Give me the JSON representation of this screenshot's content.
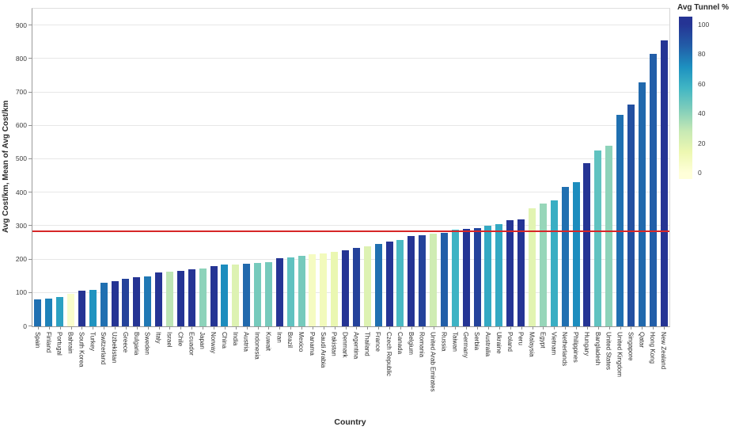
{
  "chart_data": {
    "type": "bar",
    "title": "",
    "xlabel": "Country",
    "ylabel": "Avg Cost/km, Mean of Avg Cost/km",
    "ylim": [
      0,
      950
    ],
    "yticks": [
      0,
      100,
      200,
      300,
      400,
      500,
      600,
      700,
      800,
      900
    ],
    "grid": true,
    "mean_line": {
      "value": 281,
      "color": "#d62728"
    },
    "colorbar": {
      "title": "Avg Tunnel %",
      "min": 0,
      "max": 100,
      "ticks": [
        100,
        80,
        60,
        40,
        20,
        0
      ],
      "colormap": [
        {
          "value": 0,
          "color": "#ffffd9"
        },
        {
          "value": 14,
          "color": "#edf8b1"
        },
        {
          "value": 28,
          "color": "#c7e9b4"
        },
        {
          "value": 43,
          "color": "#7fcdbb"
        },
        {
          "value": 57,
          "color": "#41b6c4"
        },
        {
          "value": 71,
          "color": "#1d91c0"
        },
        {
          "value": 85,
          "color": "#225ea8"
        },
        {
          "value": 100,
          "color": "#253494"
        }
      ]
    },
    "countries": [
      "Spain",
      "Finland",
      "Portugal",
      "Bahrain",
      "South Korea",
      "Turkey",
      "Switzerland",
      "Uzbekistan",
      "Greece",
      "Bulgaria",
      "Sweden",
      "Italy",
      "Israel",
      "Chile",
      "Ecuador",
      "Japan",
      "Norway",
      "China",
      "India",
      "Austria",
      "Indonesia",
      "Kuwait",
      "Iran",
      "Brazil",
      "Mexico",
      "Panama",
      "Saudi Arabia",
      "Pakistan",
      "Denmark",
      "Argentina",
      "Thailand",
      "France",
      "Czech Republic",
      "Canada",
      "Belgium",
      "Romania",
      "United Arab Emirates",
      "Russia",
      "Taiwan",
      "Germany",
      "Serbia",
      "Australia",
      "Ukraine",
      "Poland",
      "Peru",
      "Malaysia",
      "Egypt",
      "Vietnam",
      "Netherlands",
      "Philippines",
      "Hungary",
      "Bangladesh",
      "United States",
      "United Kingdom",
      "Singapore",
      "Qatar",
      "Hong Kong",
      "New Zealand"
    ],
    "values": [
      81,
      83,
      88,
      98,
      107,
      110,
      131,
      135,
      143,
      147,
      150,
      161,
      164,
      167,
      170,
      174,
      181,
      184,
      186,
      188,
      190,
      193,
      203,
      205,
      211,
      215,
      217,
      223,
      227,
      235,
      239,
      247,
      253,
      258,
      269,
      273,
      277,
      280,
      289,
      291,
      294,
      302,
      305,
      318,
      320,
      352,
      368,
      376,
      418,
      432,
      487,
      526,
      541,
      632,
      663,
      730,
      815,
      855
    ],
    "tunnel_pct": [
      80,
      75,
      65,
      5,
      100,
      70,
      80,
      100,
      95,
      100,
      78,
      100,
      30,
      100,
      100,
      40,
      100,
      72,
      20,
      82,
      45,
      45,
      100,
      50,
      45,
      8,
      10,
      15,
      100,
      95,
      20,
      80,
      100,
      55,
      100,
      95,
      25,
      85,
      58,
      100,
      95,
      62,
      62,
      100,
      100,
      18,
      38,
      60,
      80,
      72,
      100,
      50,
      40,
      80,
      90,
      82,
      85,
      100
    ]
  }
}
